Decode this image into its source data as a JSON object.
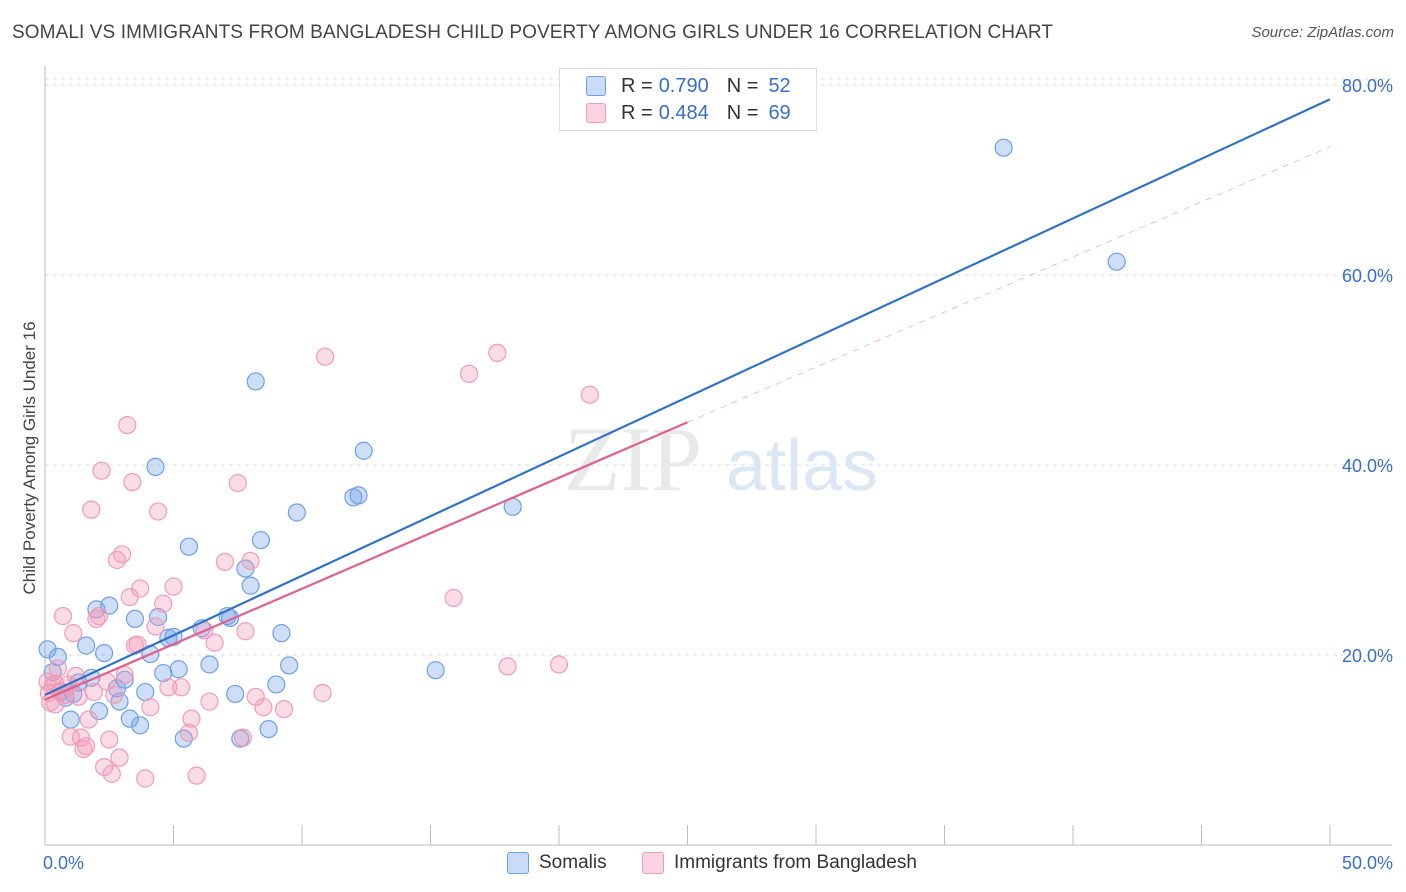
{
  "title": "SOMALI VS IMMIGRANTS FROM BANGLADESH CHILD POVERTY AMONG GIRLS UNDER 16 CORRELATION CHART",
  "source": "Source: ZipAtlas.com",
  "watermark": {
    "zip": "ZIP",
    "atlas": "atlas"
  },
  "legend_top": [
    {
      "r_label": "R =",
      "r_value": "0.790",
      "n_label": "N =",
      "n_value": "52"
    },
    {
      "r_label": "R =",
      "r_value": "0.484",
      "n_label": "N =",
      "n_value": "69"
    }
  ],
  "chart_data": {
    "type": "scatter",
    "title": "SOMALI VS IMMIGRANTS FROM BANGLADESH CHILD POVERTY AMONG GIRLS UNDER 16 CORRELATION CHART",
    "xlabel": "",
    "ylabel": "Child Poverty Among Girls Under 16",
    "xlim": [
      0,
      50
    ],
    "ylim": [
      0,
      82
    ],
    "x_tick_labels": [
      "0.0%",
      "50.0%"
    ],
    "y_ticks": [
      20,
      40,
      60,
      80
    ],
    "y_tick_labels": [
      "20.0%",
      "40.0%",
      "60.0%",
      "80.0%"
    ],
    "grid": true,
    "legend": "bottom",
    "colors": {
      "somali": "#6fa0e6",
      "bangladesh": "#f29bb8",
      "somali_line": "#2f72c8",
      "bangladesh_line": "#e0608e"
    },
    "series": [
      {
        "name": "Somalis",
        "r": 0.79,
        "n": 52,
        "trend": {
          "x": [
            0,
            50
          ],
          "y": [
            15.8,
            78.5
          ]
        },
        "points": [
          [
            0.1,
            20.6
          ],
          [
            0.3,
            18.2
          ],
          [
            0.5,
            19.8
          ],
          [
            0.6,
            16.1
          ],
          [
            0.8,
            15.5
          ],
          [
            1.0,
            13.2
          ],
          [
            1.1,
            15.9
          ],
          [
            1.3,
            17.1
          ],
          [
            1.6,
            21.0
          ],
          [
            1.8,
            17.6
          ],
          [
            2.0,
            24.8
          ],
          [
            2.1,
            14.1
          ],
          [
            2.3,
            20.2
          ],
          [
            2.5,
            25.2
          ],
          [
            2.8,
            16.5
          ],
          [
            2.9,
            15.1
          ],
          [
            3.1,
            17.4
          ],
          [
            3.3,
            13.3
          ],
          [
            3.5,
            23.8
          ],
          [
            3.7,
            12.6
          ],
          [
            3.9,
            16.1
          ],
          [
            4.1,
            20.1
          ],
          [
            4.3,
            39.8
          ],
          [
            4.4,
            24.0
          ],
          [
            4.6,
            18.1
          ],
          [
            4.8,
            21.8
          ],
          [
            5.0,
            21.9
          ],
          [
            5.2,
            18.5
          ],
          [
            5.4,
            11.2
          ],
          [
            5.6,
            31.4
          ],
          [
            6.1,
            22.8
          ],
          [
            6.4,
            19.0
          ],
          [
            7.1,
            24.1
          ],
          [
            7.2,
            23.9
          ],
          [
            7.4,
            15.9
          ],
          [
            7.6,
            11.2
          ],
          [
            7.8,
            29.1
          ],
          [
            8.0,
            27.3
          ],
          [
            8.2,
            48.8
          ],
          [
            8.4,
            32.1
          ],
          [
            8.7,
            12.2
          ],
          [
            9.0,
            16.9
          ],
          [
            9.2,
            22.3
          ],
          [
            9.5,
            18.9
          ],
          [
            9.8,
            35.0
          ],
          [
            12.0,
            36.6
          ],
          [
            12.2,
            36.8
          ],
          [
            12.4,
            41.5
          ],
          [
            15.2,
            18.4
          ],
          [
            18.2,
            35.6
          ],
          [
            37.3,
            73.4
          ],
          [
            41.7,
            61.4
          ]
        ]
      },
      {
        "name": "Immigrants from Bangladesh",
        "r": 0.484,
        "n": 69,
        "trend": {
          "x": [
            0,
            25
          ],
          "y": [
            15.3,
            44.5
          ]
        },
        "dashed_extension": {
          "x": [
            25,
            50
          ],
          "y": [
            44.5,
            73.5
          ]
        },
        "points": [
          [
            0.1,
            17.2
          ],
          [
            0.2,
            15.0
          ],
          [
            0.3,
            16.8
          ],
          [
            0.4,
            14.8
          ],
          [
            0.5,
            18.6
          ],
          [
            0.6,
            16.2
          ],
          [
            0.7,
            24.1
          ],
          [
            0.8,
            15.8
          ],
          [
            0.9,
            16.9
          ],
          [
            1.0,
            11.4
          ],
          [
            1.1,
            22.3
          ],
          [
            1.2,
            17.8
          ],
          [
            1.3,
            15.6
          ],
          [
            1.4,
            11.3
          ],
          [
            1.5,
            10.1
          ],
          [
            1.6,
            10.4
          ],
          [
            1.7,
            13.2
          ],
          [
            1.8,
            35.3
          ],
          [
            1.9,
            16.1
          ],
          [
            2.0,
            23.8
          ],
          [
            2.1,
            24.1
          ],
          [
            2.2,
            39.4
          ],
          [
            2.3,
            8.2
          ],
          [
            2.4,
            17.2
          ],
          [
            2.5,
            11.1
          ],
          [
            2.6,
            7.5
          ],
          [
            2.7,
            15.8
          ],
          [
            2.8,
            30.0
          ],
          [
            2.9,
            9.2
          ],
          [
            3.0,
            30.6
          ],
          [
            3.1,
            17.9
          ],
          [
            3.2,
            44.2
          ],
          [
            3.3,
            26.1
          ],
          [
            3.4,
            38.2
          ],
          [
            3.5,
            21.0
          ],
          [
            3.6,
            21.1
          ],
          [
            3.7,
            27.0
          ],
          [
            3.9,
            7.0
          ],
          [
            4.1,
            14.5
          ],
          [
            4.3,
            23.0
          ],
          [
            4.4,
            35.1
          ],
          [
            4.6,
            25.4
          ],
          [
            4.8,
            16.6
          ],
          [
            5.0,
            27.2
          ],
          [
            5.3,
            16.6
          ],
          [
            5.6,
            11.8
          ],
          [
            5.7,
            13.3
          ],
          [
            5.9,
            7.3
          ],
          [
            6.2,
            22.6
          ],
          [
            6.4,
            15.1
          ],
          [
            6.6,
            21.3
          ],
          [
            7.0,
            29.8
          ],
          [
            7.5,
            38.1
          ],
          [
            7.7,
            11.3
          ],
          [
            7.8,
            22.5
          ],
          [
            8.0,
            29.9
          ],
          [
            8.2,
            15.6
          ],
          [
            8.5,
            14.5
          ],
          [
            9.3,
            14.3
          ],
          [
            10.8,
            16.0
          ],
          [
            10.9,
            51.4
          ],
          [
            15.9,
            26.0
          ],
          [
            16.5,
            49.6
          ],
          [
            17.6,
            51.8
          ],
          [
            18.0,
            18.8
          ],
          [
            20.0,
            19.0
          ],
          [
            21.2,
            47.4
          ],
          [
            0.15,
            16.0
          ],
          [
            0.4,
            17.0
          ]
        ]
      }
    ]
  }
}
